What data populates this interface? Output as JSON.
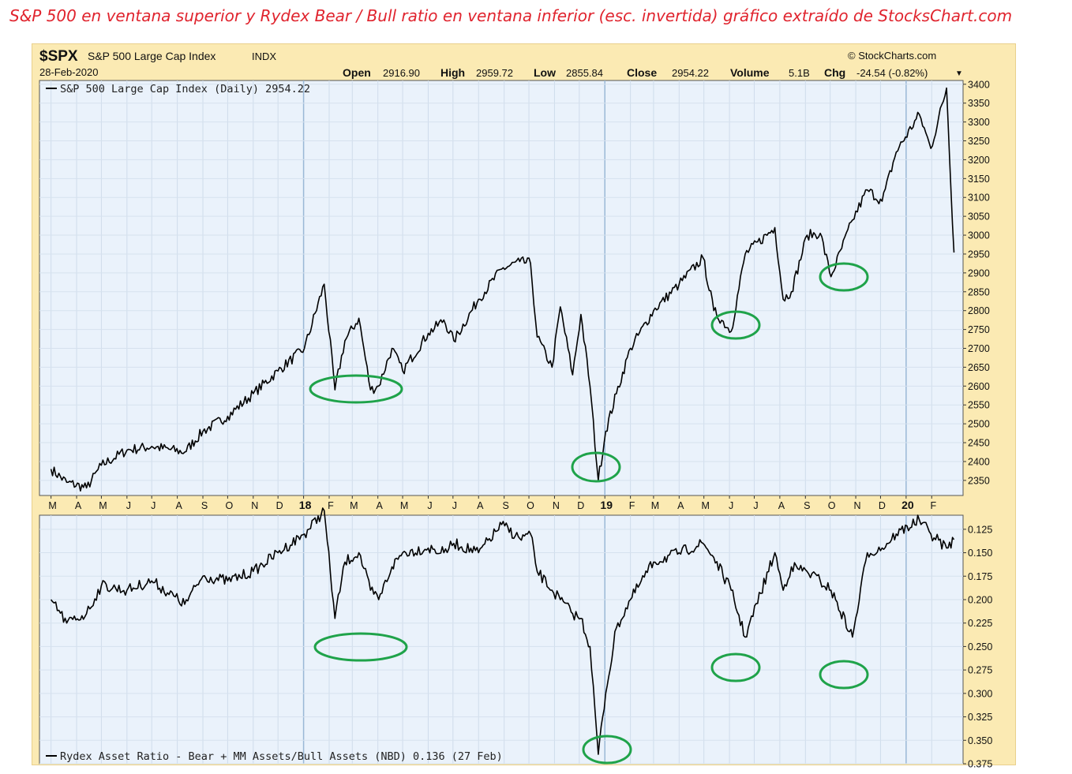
{
  "caption": "S&P 500 en ventana superior y Rydex Bear / Bull ratio en ventana inferior (esc. invertida) gráfico extraído de StocksChart.com",
  "header": {
    "symbol": "$SPX",
    "name": "S&P 500 Large Cap Index",
    "exchange": "INDX",
    "date": "28-Feb-2020",
    "watermark": "© StockCharts.com",
    "open_label": "Open",
    "open_value": "2916.90",
    "high_label": "High",
    "high_value": "2959.72",
    "low_label": "Low",
    "low_value": "2855.84",
    "close_label": "Close",
    "close_value": "2954.22",
    "volume_label": "Volume",
    "volume_value": "5.1B",
    "chg_label": "Chg",
    "chg_value": "-24.54 (-0.82%)",
    "chg_arrow": "▼"
  },
  "colors": {
    "frame": "#fbeab3",
    "panel": "#eaf2fb",
    "line": "#000000",
    "ellipse": "#1fa34a",
    "caption": "#e0242e"
  },
  "chart_data": [
    {
      "type": "line",
      "legend": "S&P 500 Large Cap Index (Daily) 2954.22",
      "ylim": [
        2310,
        3410
      ],
      "y_ticks": [
        2350,
        2400,
        2450,
        2500,
        2550,
        2600,
        2650,
        2700,
        2750,
        2800,
        2850,
        2900,
        2950,
        3000,
        3050,
        3100,
        3150,
        3200,
        3250,
        3300,
        3350,
        3400
      ],
      "x_ticks": [
        "M",
        "A",
        "M",
        "J",
        "J",
        "A",
        "S",
        "O",
        "N",
        "D",
        "18",
        "F",
        "M",
        "A",
        "M",
        "J",
        "J",
        "A",
        "S",
        "O",
        "N",
        "D",
        "19",
        "F",
        "M",
        "A",
        "M",
        "J",
        "J",
        "A",
        "S",
        "O",
        "N",
        "D",
        "20",
        "F"
      ],
      "x_tick_bold": [
        "18",
        "19",
        "20"
      ],
      "year_dividers": [
        "18",
        "19",
        "20"
      ],
      "grid": true,
      "series": [
        {
          "x": [
            "2017-03-01",
            "2017-03-20",
            "2017-04-13",
            "2017-05-01",
            "2017-06-01",
            "2017-07-01",
            "2017-08-10",
            "2017-09-01",
            "2017-10-01",
            "2017-11-01",
            "2017-12-01",
            "2018-01-02",
            "2018-01-26",
            "2018-02-08",
            "2018-02-20",
            "2018-03-09",
            "2018-03-23",
            "2018-04-02",
            "2018-04-18",
            "2018-05-01",
            "2018-06-01",
            "2018-06-20",
            "2018-07-02",
            "2018-08-01",
            "2018-08-29",
            "2018-09-20",
            "2018-10-03",
            "2018-10-11",
            "2018-10-29",
            "2018-11-08",
            "2018-11-23",
            "2018-12-03",
            "2018-12-14",
            "2018-12-24",
            "2019-01-02",
            "2019-01-15",
            "2019-02-01",
            "2019-03-01",
            "2019-04-01",
            "2019-04-30",
            "2019-05-13",
            "2019-06-03",
            "2019-06-20",
            "2019-07-26",
            "2019-08-05",
            "2019-08-15",
            "2019-09-03",
            "2019-09-19",
            "2019-10-02",
            "2019-10-28",
            "2019-11-15",
            "2019-12-03",
            "2019-12-20",
            "2020-01-17",
            "2020-01-31",
            "2020-02-19",
            "2020-02-28"
          ],
          "y": [
            2380,
            2345,
            2330,
            2390,
            2430,
            2440,
            2425,
            2480,
            2520,
            2580,
            2640,
            2700,
            2870,
            2590,
            2720,
            2780,
            2590,
            2600,
            2700,
            2640,
            2740,
            2775,
            2720,
            2830,
            2910,
            2930,
            2925,
            2730,
            2650,
            2810,
            2630,
            2790,
            2600,
            2350,
            2480,
            2580,
            2700,
            2800,
            2870,
            2940,
            2800,
            2745,
            2950,
            3020,
            2830,
            2850,
            3000,
            3005,
            2890,
            3040,
            3120,
            3090,
            3220,
            3320,
            3230,
            3390,
            2954
          ]
        }
      ],
      "annotations": [
        "ellipse-feb-2018",
        "ellipse-dec-2018",
        "ellipse-jun-2019",
        "ellipse-oct-2019"
      ]
    },
    {
      "type": "line",
      "legend": "Rydex Asset Ratio - Bear + MM Assets/Bull Assets (NBD) 0.136 (27 Feb)",
      "ylim": [
        0.11,
        0.375
      ],
      "inverted": true,
      "y_ticks": [
        0.125,
        0.15,
        0.175,
        0.2,
        0.225,
        0.25,
        0.275,
        0.3,
        0.325,
        0.35,
        0.375
      ],
      "y_tick_labels": [
        "0.125",
        "0.150",
        "0.175",
        "0.200",
        "0.225",
        "0.250",
        "0.275",
        "0.300",
        "0.325",
        "0.350",
        "0.375"
      ],
      "grid": true,
      "series": [
        {
          "x": [
            "2017-03-01",
            "2017-03-20",
            "2017-04-13",
            "2017-05-01",
            "2017-06-01",
            "2017-07-01",
            "2017-08-10",
            "2017-09-01",
            "2017-10-01",
            "2017-11-01",
            "2017-12-01",
            "2018-01-02",
            "2018-01-26",
            "2018-02-08",
            "2018-02-20",
            "2018-03-09",
            "2018-03-23",
            "2018-04-02",
            "2018-04-18",
            "2018-05-01",
            "2018-06-01",
            "2018-06-20",
            "2018-07-02",
            "2018-08-01",
            "2018-08-29",
            "2018-09-20",
            "2018-10-03",
            "2018-10-11",
            "2018-10-29",
            "2018-11-08",
            "2018-11-23",
            "2018-12-03",
            "2018-12-14",
            "2018-12-24",
            "2019-01-02",
            "2019-01-15",
            "2019-02-01",
            "2019-03-01",
            "2019-04-01",
            "2019-04-30",
            "2019-05-13",
            "2019-06-03",
            "2019-06-20",
            "2019-07-26",
            "2019-08-05",
            "2019-08-15",
            "2019-09-03",
            "2019-09-19",
            "2019-10-02",
            "2019-10-28",
            "2019-11-15",
            "2019-12-03",
            "2019-12-20",
            "2020-01-17",
            "2020-01-31",
            "2020-02-19",
            "2020-02-28"
          ],
          "y": [
            0.2,
            0.225,
            0.215,
            0.185,
            0.19,
            0.18,
            0.205,
            0.175,
            0.18,
            0.17,
            0.15,
            0.13,
            0.105,
            0.22,
            0.16,
            0.15,
            0.19,
            0.2,
            0.165,
            0.15,
            0.145,
            0.15,
            0.14,
            0.15,
            0.12,
            0.135,
            0.13,
            0.17,
            0.19,
            0.2,
            0.215,
            0.22,
            0.25,
            0.365,
            0.3,
            0.23,
            0.2,
            0.16,
            0.15,
            0.14,
            0.155,
            0.19,
            0.24,
            0.15,
            0.19,
            0.165,
            0.17,
            0.18,
            0.19,
            0.24,
            0.15,
            0.145,
            0.13,
            0.115,
            0.13,
            0.145,
            0.136
          ]
        }
      ],
      "annotations": [
        "ellipse-feb-2018",
        "ellipse-dec-2018",
        "ellipse-jun-2019",
        "ellipse-oct-2019"
      ]
    }
  ]
}
